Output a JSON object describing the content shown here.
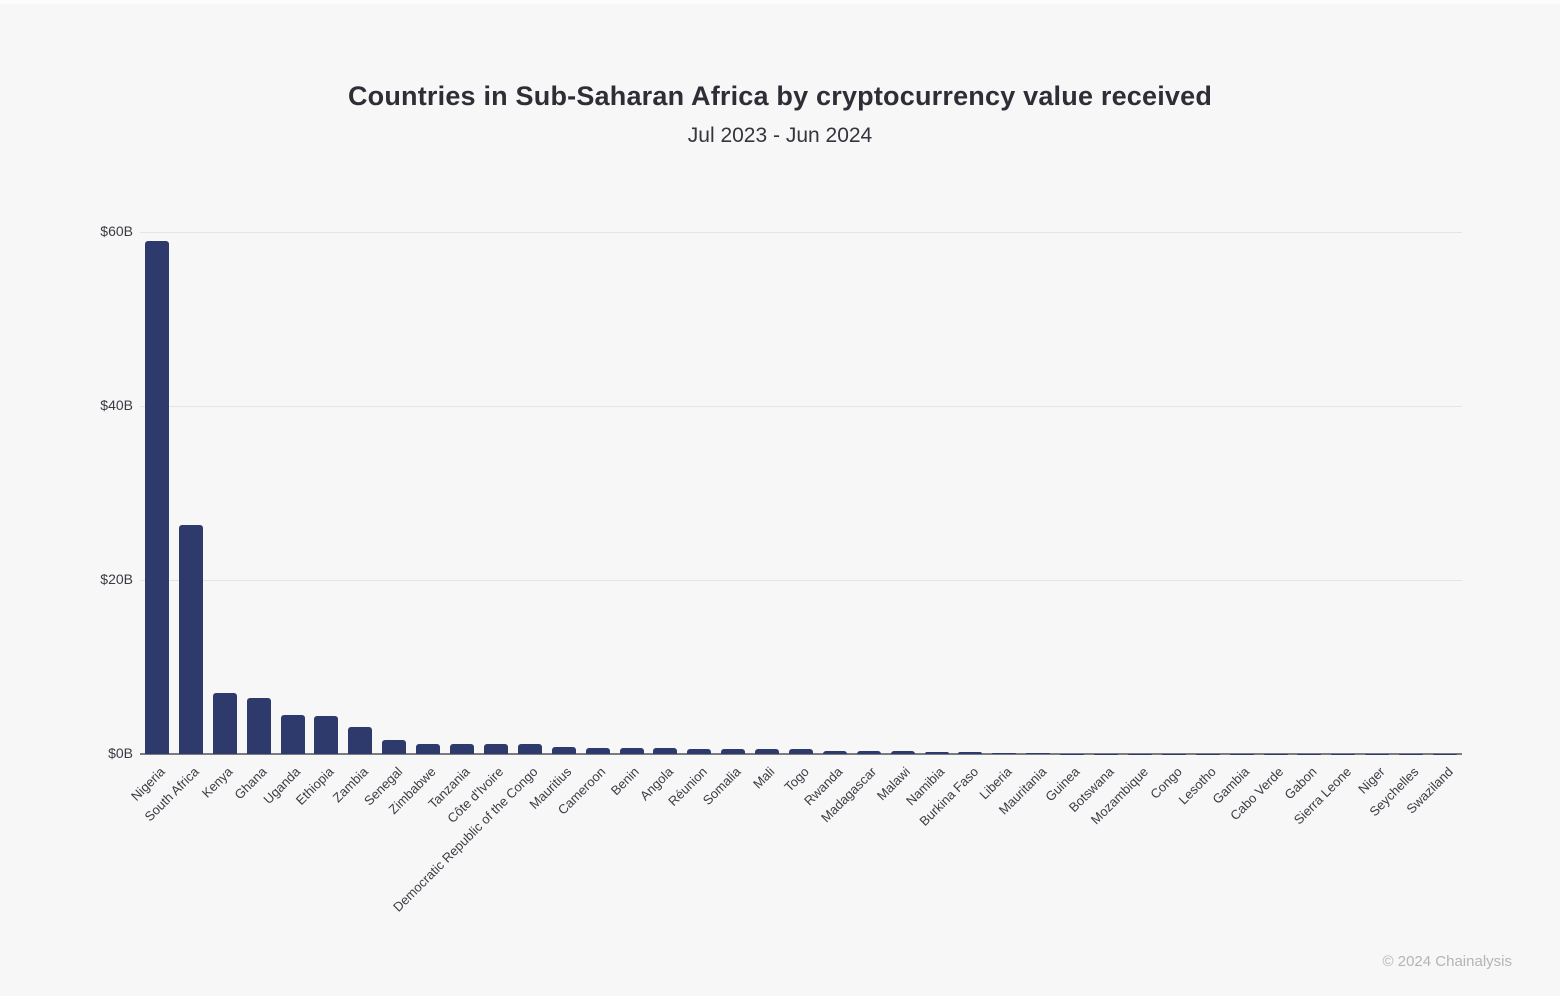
{
  "page": {
    "background": "#f7f7f8",
    "footer": "© 2024 Chainalysis"
  },
  "chart_data": {
    "type": "bar",
    "title": "Countries in Sub-Saharan Africa by cryptocurrency value received",
    "subtitle": "Jul 2023 - Jun 2024",
    "xlabel": "",
    "ylabel": "",
    "unit": "USD billions of cryptocurrency value received",
    "ylim": [
      0,
      60
    ],
    "y_ticks": [
      "$0B",
      "$20B",
      "$40B",
      "$60B"
    ],
    "y_tick_values": [
      0,
      20,
      40,
      60
    ],
    "grid": "horizontal gridlines, light gray",
    "legend": "none",
    "categories": [
      "Nigeria",
      "South Africa",
      "Kenya",
      "Ghana",
      "Uganda",
      "Ethiopia",
      "Zambia",
      "Senegal",
      "Zimbabwe",
      "Tanzania",
      "Côte d'Ivoire",
      "Democratic Republic of the Congo",
      "Mauritius",
      "Cameroon",
      "Benin",
      "Angola",
      "Réunion",
      "Somalia",
      "Mali",
      "Togo",
      "Rwanda",
      "Madagascar",
      "Malawi",
      "Namibia",
      "Burkina Faso",
      "Liberia",
      "Mauritania",
      "Guinea",
      "Botswana",
      "Mozambique",
      "Congo",
      "Lesotho",
      "Gambia",
      "Cabo Verde",
      "Gabon",
      "Sierra Leone",
      "Niger",
      "Seychelles",
      "Swaziland"
    ],
    "values": [
      59.0,
      26.3,
      7.0,
      6.4,
      4.5,
      4.4,
      3.1,
      1.65,
      1.1,
      1.15,
      1.1,
      1.15,
      0.8,
      0.7,
      0.68,
      0.68,
      0.55,
      0.55,
      0.58,
      0.52,
      0.3,
      0.3,
      0.3,
      0.28,
      0.28,
      0.07,
      0.06,
      0.05,
      0.05,
      0.04,
      0.04,
      0.03,
      0.03,
      0.025,
      0.02,
      0.02,
      0.015,
      0.01,
      0.01
    ],
    "colors": {
      "bar": "#2d3a6b",
      "axis": "#7b7b80",
      "gridline": "#e4e4e7",
      "title_text": "#2e2e36",
      "tick_text": "#3b3b43",
      "footer_text": "#b4b4b9",
      "background": "#f7f7f8"
    }
  }
}
